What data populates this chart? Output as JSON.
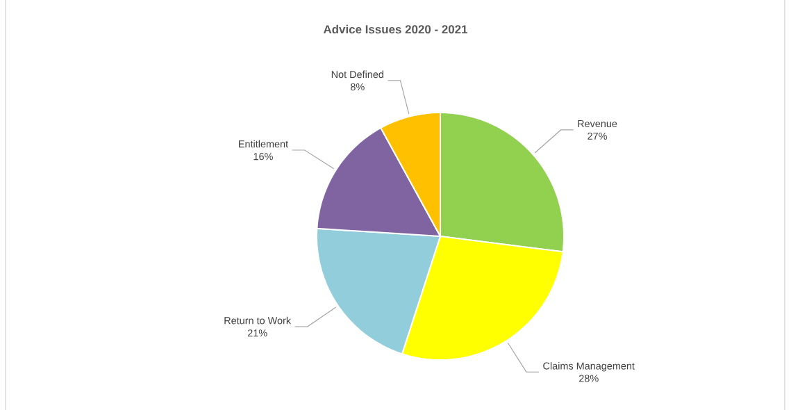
{
  "chart_data": {
    "type": "pie",
    "title": "Advice Issues 2020 - 2021",
    "categories": [
      "Revenue",
      "Claims Management",
      "Return to Work",
      "Entitlement",
      "Not Defined"
    ],
    "values": [
      27,
      28,
      21,
      16,
      8
    ],
    "colors": [
      "#92d050",
      "#ffff00",
      "#92cddc",
      "#8064a2",
      "#ffc000"
    ],
    "value_labels": [
      "27%",
      "28%",
      "21%",
      "16%",
      "8%"
    ]
  }
}
